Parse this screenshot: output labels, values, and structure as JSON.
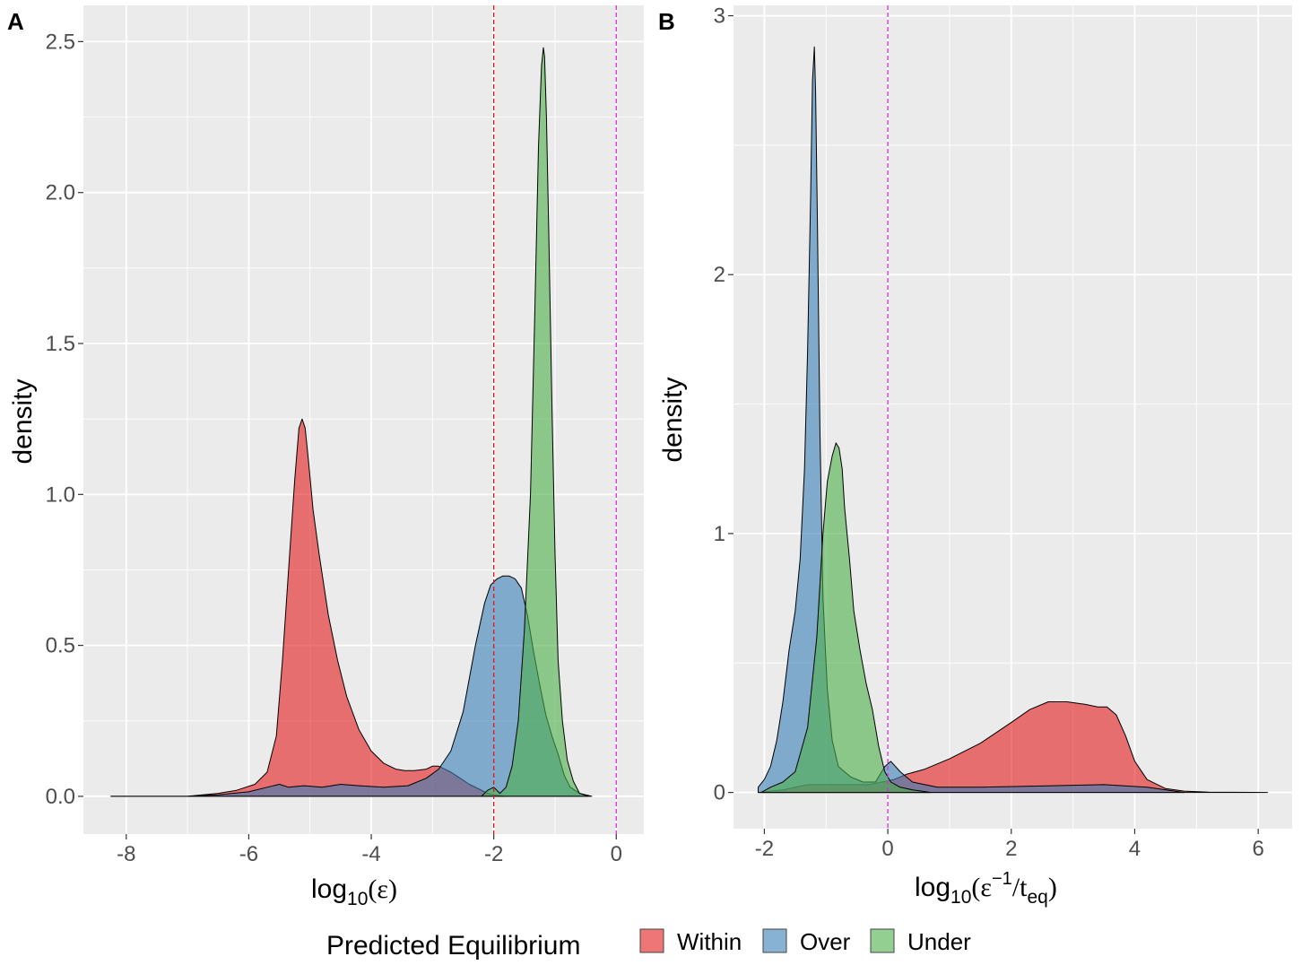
{
  "legend": {
    "title": "Predicted Equilibrium",
    "items": [
      {
        "label": "Within",
        "color": "#e41a1c"
      },
      {
        "label": "Over",
        "color": "#377eb8"
      },
      {
        "label": "Under",
        "color": "#4daf4a"
      }
    ]
  },
  "chart_data": [
    {
      "panel": "A",
      "type": "area",
      "xlabel_main": "log",
      "xlabel_sub": "10",
      "xlabel_arg": "(ε)",
      "ylabel": "density",
      "xlim": [
        -8.7,
        0.45
      ],
      "ylim": [
        -0.125,
        2.62
      ],
      "xticks": [
        -8,
        -6,
        -4,
        -2,
        0
      ],
      "xtick_labels": [
        "-8",
        "-6",
        "-4",
        "-2",
        "0"
      ],
      "yticks": [
        0,
        0.5,
        1,
        1.5,
        2,
        2.5
      ],
      "ytick_labels": [
        "0.0",
        "0.5",
        "1.0",
        "1.5",
        "2.0",
        "2.5"
      ],
      "grid": true,
      "vlines": [
        {
          "x": -2,
          "color": "#d7191c",
          "style": "dashed"
        },
        {
          "x": 0,
          "color": "#d62ad6",
          "style": "dashed"
        }
      ],
      "series": [
        {
          "name": "Within",
          "color": "#e41a1c",
          "x": [
            -8.25,
            -7.0,
            -6.5,
            -6.2,
            -5.9,
            -5.7,
            -5.55,
            -5.45,
            -5.35,
            -5.25,
            -5.18,
            -5.13,
            -5.08,
            -5.02,
            -4.95,
            -4.85,
            -4.7,
            -4.55,
            -4.4,
            -4.2,
            -4.0,
            -3.8,
            -3.6,
            -3.45,
            -3.3,
            -3.1,
            -3.0,
            -2.9,
            -2.8,
            -2.7,
            -2.55,
            -2.4,
            -2.25,
            -2.1,
            -2.0,
            -1.8
          ],
          "y": [
            0,
            0,
            0.01,
            0.02,
            0.04,
            0.08,
            0.2,
            0.45,
            0.75,
            1.05,
            1.22,
            1.25,
            1.22,
            1.1,
            0.95,
            0.8,
            0.6,
            0.45,
            0.33,
            0.22,
            0.15,
            0.11,
            0.09,
            0.085,
            0.085,
            0.09,
            0.1,
            0.1,
            0.09,
            0.08,
            0.06,
            0.04,
            0.025,
            0.01,
            0.005,
            0
          ]
        },
        {
          "name": "Over",
          "color": "#377eb8",
          "x": [
            -8.25,
            -7.0,
            -6.5,
            -6.0,
            -5.7,
            -5.5,
            -5.35,
            -5.1,
            -4.8,
            -4.5,
            -4.2,
            -3.8,
            -3.4,
            -3.1,
            -2.9,
            -2.7,
            -2.5,
            -2.3,
            -2.15,
            -2.05,
            -1.95,
            -1.85,
            -1.75,
            -1.65,
            -1.55,
            -1.45,
            -1.35,
            -1.25,
            -1.15,
            -1.05,
            -0.95,
            -0.85,
            -0.75,
            -0.6,
            -0.5,
            -0.4
          ],
          "y": [
            0,
            0,
            0.005,
            0.015,
            0.03,
            0.04,
            0.03,
            0.035,
            0.03,
            0.04,
            0.035,
            0.03,
            0.035,
            0.06,
            0.09,
            0.15,
            0.28,
            0.5,
            0.64,
            0.7,
            0.72,
            0.73,
            0.73,
            0.72,
            0.69,
            0.6,
            0.48,
            0.37,
            0.27,
            0.2,
            0.14,
            0.07,
            0.03,
            0.01,
            0.005,
            0
          ]
        },
        {
          "name": "Under",
          "color": "#4daf4a",
          "x": [
            -2.2,
            -2.1,
            -2.0,
            -1.9,
            -1.8,
            -1.7,
            -1.6,
            -1.5,
            -1.4,
            -1.33,
            -1.27,
            -1.22,
            -1.19,
            -1.17,
            -1.14,
            -1.1,
            -1.05,
            -1.0,
            -0.95,
            -0.88,
            -0.8,
            -0.7,
            -0.6,
            -0.45
          ],
          "y": [
            0,
            0.02,
            0.03,
            0.01,
            0.03,
            0.1,
            0.25,
            0.55,
            1.0,
            1.6,
            2.15,
            2.42,
            2.48,
            2.45,
            2.25,
            1.85,
            1.3,
            0.8,
            0.45,
            0.25,
            0.12,
            0.05,
            0.01,
            0
          ]
        }
      ]
    },
    {
      "panel": "B",
      "type": "area",
      "xlabel_main": "log",
      "xlabel_sub": "10",
      "xlabel_arg_open": "(ε",
      "xlabel_sup": "−1",
      "xlabel_div": "/t",
      "xlabel_sub2": "eq",
      "xlabel_close": ")",
      "ylabel": "density",
      "xlim": [
        -2.5,
        6.55
      ],
      "ylim": [
        -0.14,
        3.04
      ],
      "xticks": [
        -2,
        0,
        2,
        4,
        6
      ],
      "xtick_labels": [
        "-2",
        "0",
        "2",
        "4",
        "6"
      ],
      "yticks": [
        0,
        1,
        2,
        3
      ],
      "ytick_labels": [
        "0",
        "1",
        "2",
        "3"
      ],
      "grid": true,
      "vlines": [
        {
          "x": 0,
          "color": "#d62ad6",
          "style": "dashed"
        }
      ],
      "series": [
        {
          "name": "Within",
          "color": "#e41a1c",
          "x": [
            -2.1,
            -1.9,
            -1.7,
            -1.5,
            -1.3,
            -1.1,
            -0.9,
            -0.7,
            -0.5,
            -0.3,
            -0.1,
            0.1,
            0.3,
            0.6,
            1.0,
            1.5,
            2.0,
            2.3,
            2.6,
            2.9,
            3.2,
            3.4,
            3.55,
            3.7,
            3.85,
            4.0,
            4.2,
            4.5,
            4.8,
            5.2,
            6.15
          ],
          "y": [
            0,
            0.005,
            0.01,
            0.02,
            0.03,
            0.03,
            0.03,
            0.03,
            0.03,
            0.03,
            0.04,
            0.05,
            0.07,
            0.09,
            0.13,
            0.19,
            0.27,
            0.32,
            0.35,
            0.35,
            0.34,
            0.33,
            0.33,
            0.3,
            0.22,
            0.12,
            0.05,
            0.015,
            0.005,
            0.001,
            0
          ]
        },
        {
          "name": "Over",
          "color": "#377eb8",
          "x": [
            -2.1,
            -2.0,
            -1.9,
            -1.8,
            -1.7,
            -1.6,
            -1.5,
            -1.42,
            -1.35,
            -1.3,
            -1.25,
            -1.22,
            -1.19,
            -1.17,
            -1.14,
            -1.1,
            -1.05,
            -0.98,
            -0.9,
            -0.8,
            -0.6,
            -0.4,
            -0.2,
            -0.05,
            0.05,
            0.2,
            0.4,
            0.8,
            1.5,
            2.5,
            3.5,
            4.2,
            4.8
          ],
          "y": [
            0.02,
            0.05,
            0.1,
            0.2,
            0.35,
            0.55,
            0.7,
            0.9,
            1.25,
            1.7,
            2.3,
            2.75,
            2.88,
            2.7,
            2.2,
            1.4,
            0.75,
            0.4,
            0.2,
            0.1,
            0.06,
            0.04,
            0.04,
            0.1,
            0.12,
            0.08,
            0.04,
            0.02,
            0.02,
            0.025,
            0.03,
            0.02,
            0
          ]
        },
        {
          "name": "Under",
          "color": "#4daf4a",
          "x": [
            -2.05,
            -1.9,
            -1.7,
            -1.5,
            -1.3,
            -1.15,
            -1.05,
            -0.98,
            -0.9,
            -0.84,
            -0.79,
            -0.74,
            -0.7,
            -0.62,
            -0.55,
            -0.45,
            -0.35,
            -0.25,
            -0.15,
            -0.05,
            0.05,
            0.2,
            0.4,
            0.7
          ],
          "y": [
            0,
            0.02,
            0.04,
            0.08,
            0.25,
            0.6,
            1.0,
            1.2,
            1.3,
            1.35,
            1.33,
            1.25,
            1.1,
            0.9,
            0.7,
            0.55,
            0.42,
            0.32,
            0.18,
            0.08,
            0.04,
            0.02,
            0.01,
            0
          ]
        }
      ]
    }
  ]
}
